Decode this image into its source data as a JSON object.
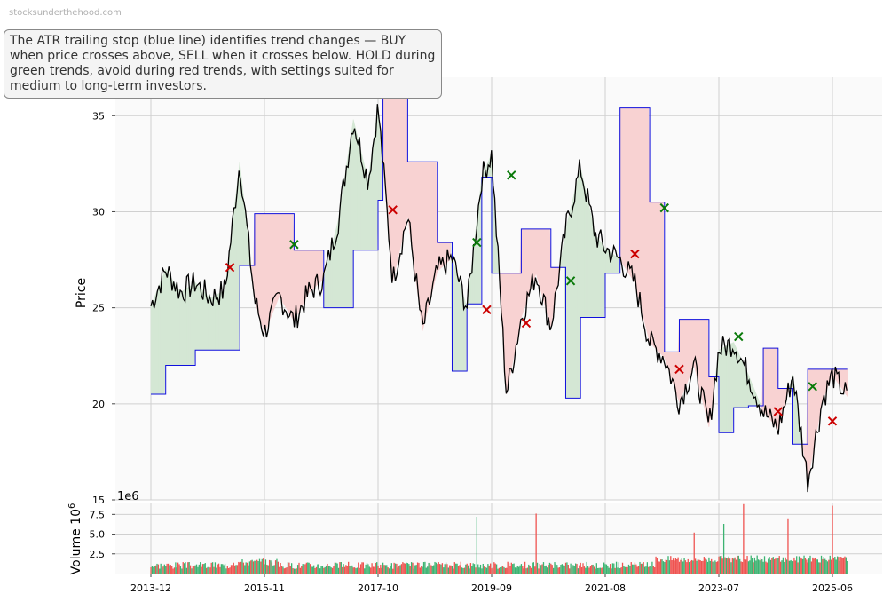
{
  "watermark": "stocksunderthehood.com",
  "annotation": "The ATR trailing stop (blue line) identifies trend changes — BUY when price crosses above, SELL when it crosses below. HOLD during green trends, avoid during red trends, with settings suited for medium to long-term investors.",
  "colors": {
    "price": "#000000",
    "stop": "#1010dd",
    "up_fill": "#d4e7d4",
    "down_fill": "#f8d2d2",
    "buy": "#0a7a0a",
    "sell": "#cc0000",
    "vol_up": "#3cb371",
    "vol_down": "#ef5350",
    "panel_bg": "#fafafa",
    "grid": "#d0d0d0"
  },
  "chart_data": [
    {
      "type": "line",
      "ylabel": "Price",
      "ylim": [
        15,
        37
      ],
      "yticks": [
        15,
        20,
        25,
        30,
        35
      ],
      "x_range": [
        "2013-12",
        "2025-12"
      ],
      "xticks": [
        "2013-12",
        "2015-11",
        "2017-10",
        "2019-09",
        "2021-08",
        "2023-07",
        "2025-06"
      ],
      "series": [
        {
          "role": "price",
          "x": [
            "2013-12",
            "2014-03",
            "2014-06",
            "2014-09",
            "2014-12",
            "2015-03",
            "2015-06",
            "2015-09",
            "2015-11",
            "2016-02",
            "2016-05",
            "2016-08",
            "2016-11",
            "2017-02",
            "2017-05",
            "2017-08",
            "2017-10",
            "2018-01",
            "2018-04",
            "2018-07",
            "2018-10",
            "2019-01",
            "2019-04",
            "2019-07",
            "2019-09",
            "2019-12",
            "2020-03",
            "2020-06",
            "2020-09",
            "2020-12",
            "2021-03",
            "2021-06",
            "2021-08",
            "2021-11",
            "2022-02",
            "2022-05",
            "2022-08",
            "2022-11",
            "2023-02",
            "2023-05",
            "2023-07",
            "2023-10",
            "2024-01",
            "2024-04",
            "2024-07",
            "2024-10",
            "2025-01",
            "2025-04",
            "2025-06",
            "2025-09"
          ],
          "values": [
            25.1,
            27.0,
            25.8,
            26.3,
            25.5,
            25.9,
            32.6,
            25.4,
            23.7,
            25.6,
            24.3,
            25.8,
            26.5,
            29.6,
            34.8,
            31.6,
            35.5,
            26.4,
            29.8,
            23.8,
            26.9,
            27.6,
            25.0,
            31.8,
            33.0,
            20.5,
            24.5,
            26.8,
            24.0,
            29.1,
            32.3,
            28.8,
            28.1,
            27.5,
            26.3,
            23.2,
            22.4,
            20.1,
            22.0,
            18.8,
            22.8,
            23.2,
            21.5,
            19.6,
            18.7,
            21.5,
            16.0,
            20.2,
            21.5,
            20.4
          ]
        },
        {
          "role": "atr-stop",
          "x": [
            "2013-12",
            "2014-03",
            "2014-09",
            "2015-06",
            "2015-09",
            "2015-11",
            "2016-05",
            "2016-11",
            "2017-05",
            "2017-10",
            "2017-11",
            "2018-04",
            "2018-10",
            "2019-01",
            "2019-04",
            "2019-07",
            "2019-09",
            "2020-03",
            "2020-09",
            "2020-12",
            "2021-03",
            "2021-08",
            "2021-11",
            "2022-05",
            "2022-08",
            "2022-11",
            "2023-02",
            "2023-05",
            "2023-07",
            "2023-10",
            "2024-01",
            "2024-04",
            "2024-07",
            "2024-10",
            "2025-01",
            "2025-04",
            "2025-06",
            "2025-09"
          ],
          "values": [
            20.5,
            22.0,
            22.8,
            27.2,
            29.9,
            29.9,
            28.0,
            25.0,
            28.0,
            30.6,
            36.8,
            32.6,
            28.4,
            21.7,
            25.2,
            31.8,
            26.8,
            29.1,
            27.1,
            20.3,
            24.5,
            26.8,
            35.4,
            30.5,
            22.7,
            24.4,
            24.4,
            21.4,
            18.5,
            19.8,
            19.9,
            22.9,
            20.8,
            17.9,
            21.8,
            21.8,
            21.8,
            21.8
          ]
        }
      ],
      "buy_signals": [
        {
          "x": "2016-05",
          "y": 28.3
        },
        {
          "x": "2019-06",
          "y": 28.4
        },
        {
          "x": "2020-01",
          "y": 31.9
        },
        {
          "x": "2021-01",
          "y": 26.4
        },
        {
          "x": "2022-08",
          "y": 30.2
        },
        {
          "x": "2023-11",
          "y": 23.5
        },
        {
          "x": "2025-02",
          "y": 20.9
        }
      ],
      "sell_signals": [
        {
          "x": "2015-04",
          "y": 27.1
        },
        {
          "x": "2018-01",
          "y": 30.1
        },
        {
          "x": "2019-08",
          "y": 24.9
        },
        {
          "x": "2020-04",
          "y": 24.2
        },
        {
          "x": "2022-02",
          "y": 27.8
        },
        {
          "x": "2022-11",
          "y": 21.8
        },
        {
          "x": "2024-07",
          "y": 19.6
        },
        {
          "x": "2025-06",
          "y": 19.1
        }
      ]
    },
    {
      "type": "bar",
      "ylabel": "Volume  10",
      "ylabel_exp": "6",
      "offset_label": "1e6",
      "ylim": [
        0,
        9
      ],
      "yticks": [
        "2.5",
        "5.0",
        "7.5"
      ],
      "spikes": [
        {
          "x": "2019-06",
          "value": 7.2,
          "dir": "up"
        },
        {
          "x": "2020-06",
          "value": 7.6,
          "dir": "down"
        },
        {
          "x": "2023-02",
          "value": 5.2,
          "dir": "down"
        },
        {
          "x": "2023-08",
          "value": 6.3,
          "dir": "up"
        },
        {
          "x": "2023-12",
          "value": 8.8,
          "dir": "down"
        },
        {
          "x": "2025-06",
          "value": 8.6,
          "dir": "down"
        },
        {
          "x": "2024-09",
          "value": 7.0,
          "dir": "down"
        }
      ]
    }
  ]
}
